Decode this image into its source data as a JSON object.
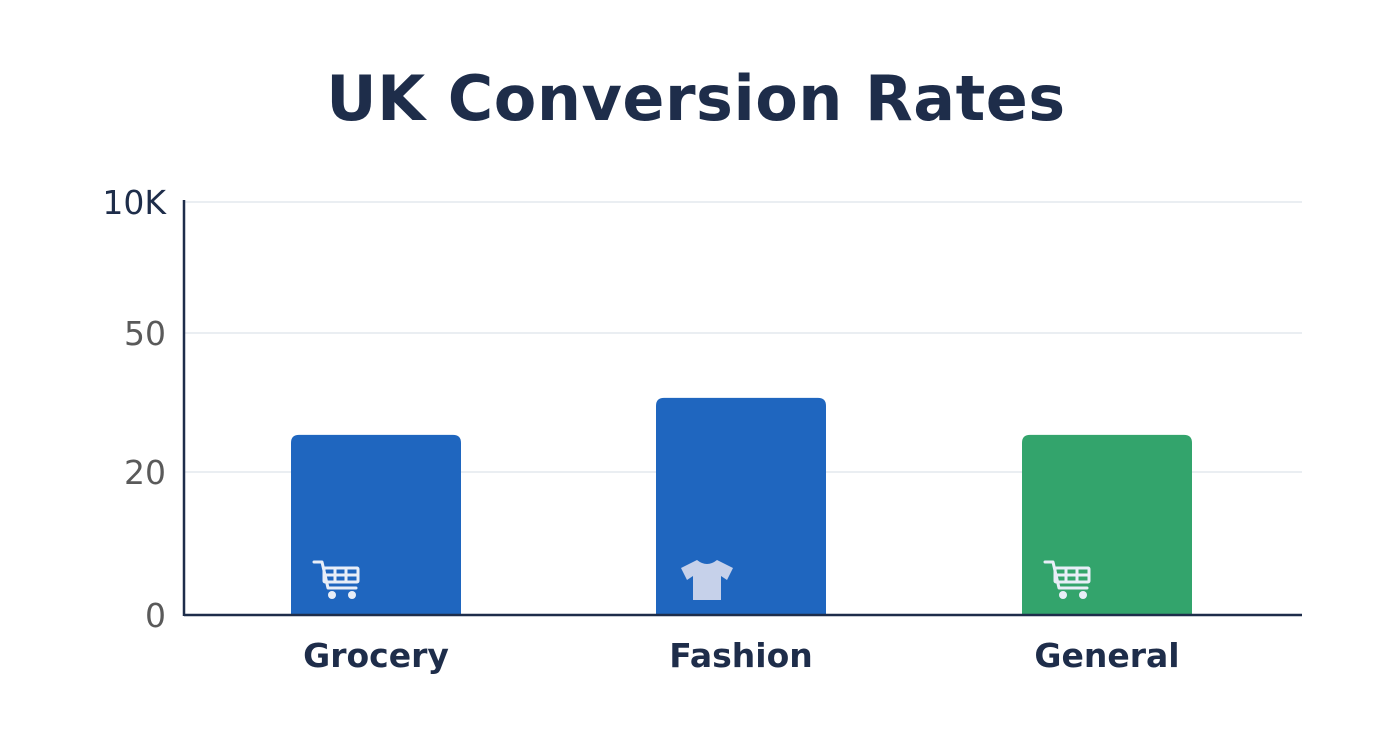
{
  "chart_data": {
    "type": "bar",
    "title": "UK Conversion Rates",
    "xlabel": "",
    "ylabel": "",
    "categories": [
      "Grocery",
      "Fashion",
      "General"
    ],
    "values": [
      28,
      36,
      28
    ],
    "bar_colors": [
      "#1f66bf",
      "#1f66bf",
      "#33a46c"
    ],
    "bar_icons": [
      "shopping-cart-icon",
      "t-shirt-icon",
      "shopping-cart-icon"
    ],
    "y_ticks": [
      {
        "label": "0",
        "value": 0,
        "color": "#5a5a5a"
      },
      {
        "label": "20",
        "value": 20,
        "color": "#5a5a5a"
      },
      {
        "label": "50",
        "value": 50,
        "color": "#5a5a5a"
      },
      {
        "label": "10K",
        "value": 10000,
        "color": "#1e2d4a"
      }
    ],
    "ylim": [
      0,
      10000
    ],
    "grid": true,
    "legend": "none"
  }
}
